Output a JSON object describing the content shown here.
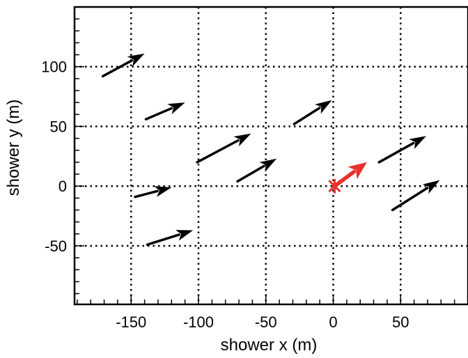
{
  "chart_data": {
    "type": "scatter",
    "title": "",
    "xlabel": "shower x  (m)",
    "ylabel": "shower y  (m)",
    "xlim": [
      -192,
      100
    ],
    "ylim": [
      -99,
      150
    ],
    "xticks": [
      -150,
      -100,
      -50,
      0,
      50
    ],
    "yticks": [
      -50,
      0,
      50,
      100
    ],
    "grid": true,
    "grid_style": "dotted",
    "colors": {
      "arrows": "#000000",
      "core": "#e8302c"
    },
    "arrows": [
      {
        "x0": -171,
        "y0": 92,
        "x1": -140,
        "y1": 111
      },
      {
        "x0": -139,
        "y0": 56,
        "x1": -110,
        "y1": 70
      },
      {
        "x0": -101,
        "y0": 20,
        "x1": -61,
        "y1": 44
      },
      {
        "x0": -147,
        "y0": -9,
        "x1": -120,
        "y1": -1
      },
      {
        "x0": -138,
        "y0": -49,
        "x1": -104,
        "y1": -37
      },
      {
        "x0": -71,
        "y0": 4,
        "x1": -42,
        "y1": 23
      },
      {
        "x0": -29,
        "y0": 52,
        "x1": -1,
        "y1": 72
      },
      {
        "x0": 34,
        "y0": 20,
        "x1": 69,
        "y1": 42
      },
      {
        "x0": 44,
        "y0": -20,
        "x1": 79,
        "y1": 5
      }
    ],
    "core": {
      "x": 1,
      "y": 0
    },
    "core_arrow": {
      "x0": 1,
      "y0": 0,
      "x1": 25,
      "y1": 20
    }
  }
}
